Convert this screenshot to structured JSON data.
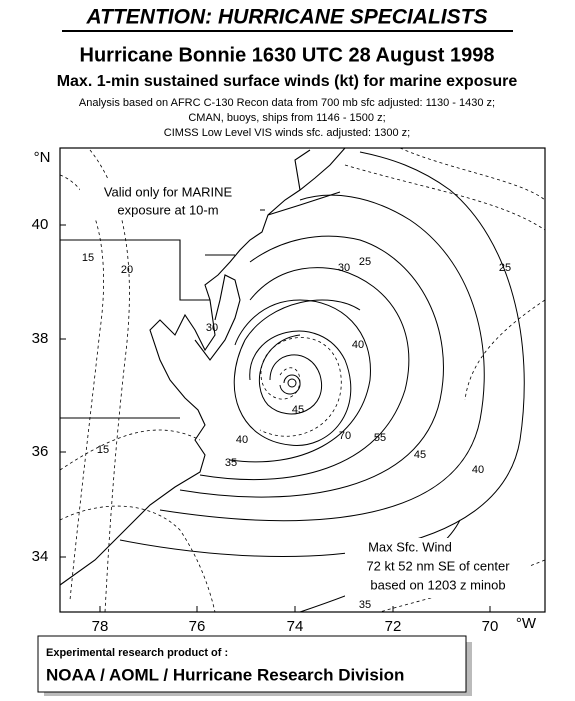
{
  "header": {
    "attention": "ATTENTION: HURRICANE SPECIALISTS",
    "title": "Hurricane Bonnie 1630 UTC 28 August 1998",
    "subtitle": "Max. 1-min sustained surface winds (kt) for marine exposure",
    "notes": [
      "Analysis based on AFRC C-130 Recon data from 700 mb sfc adjusted: 1130 - 1430 z;",
      "CMAN, buoys, ships from 1146 - 1500 z;",
      "CIMSS Low Level VIS winds sfc. adjusted: 1300 z;"
    ]
  },
  "map": {
    "lat_unit": "°N",
    "lon_unit": "°W",
    "lat_labels": [
      "40",
      "38",
      "36",
      "34"
    ],
    "lon_labels": [
      "78",
      "76",
      "74",
      "72",
      "70"
    ],
    "valid_note": [
      "Valid only for MARINE",
      "exposure at 10-m"
    ],
    "max_wind_note": [
      "Max Sfc. Wind",
      "72 kt  52 nm SE of center",
      "based on 1203 z minob"
    ],
    "contour_labels": [
      "15",
      "20",
      "25",
      "25",
      "30",
      "30",
      "35",
      "35",
      "40",
      "40",
      "40",
      "45",
      "45",
      "55",
      "70",
      "15"
    ]
  },
  "footer": {
    "line1": "Experimental research product of :",
    "line2": "NOAA / AOML / Hurricane Research Division"
  }
}
